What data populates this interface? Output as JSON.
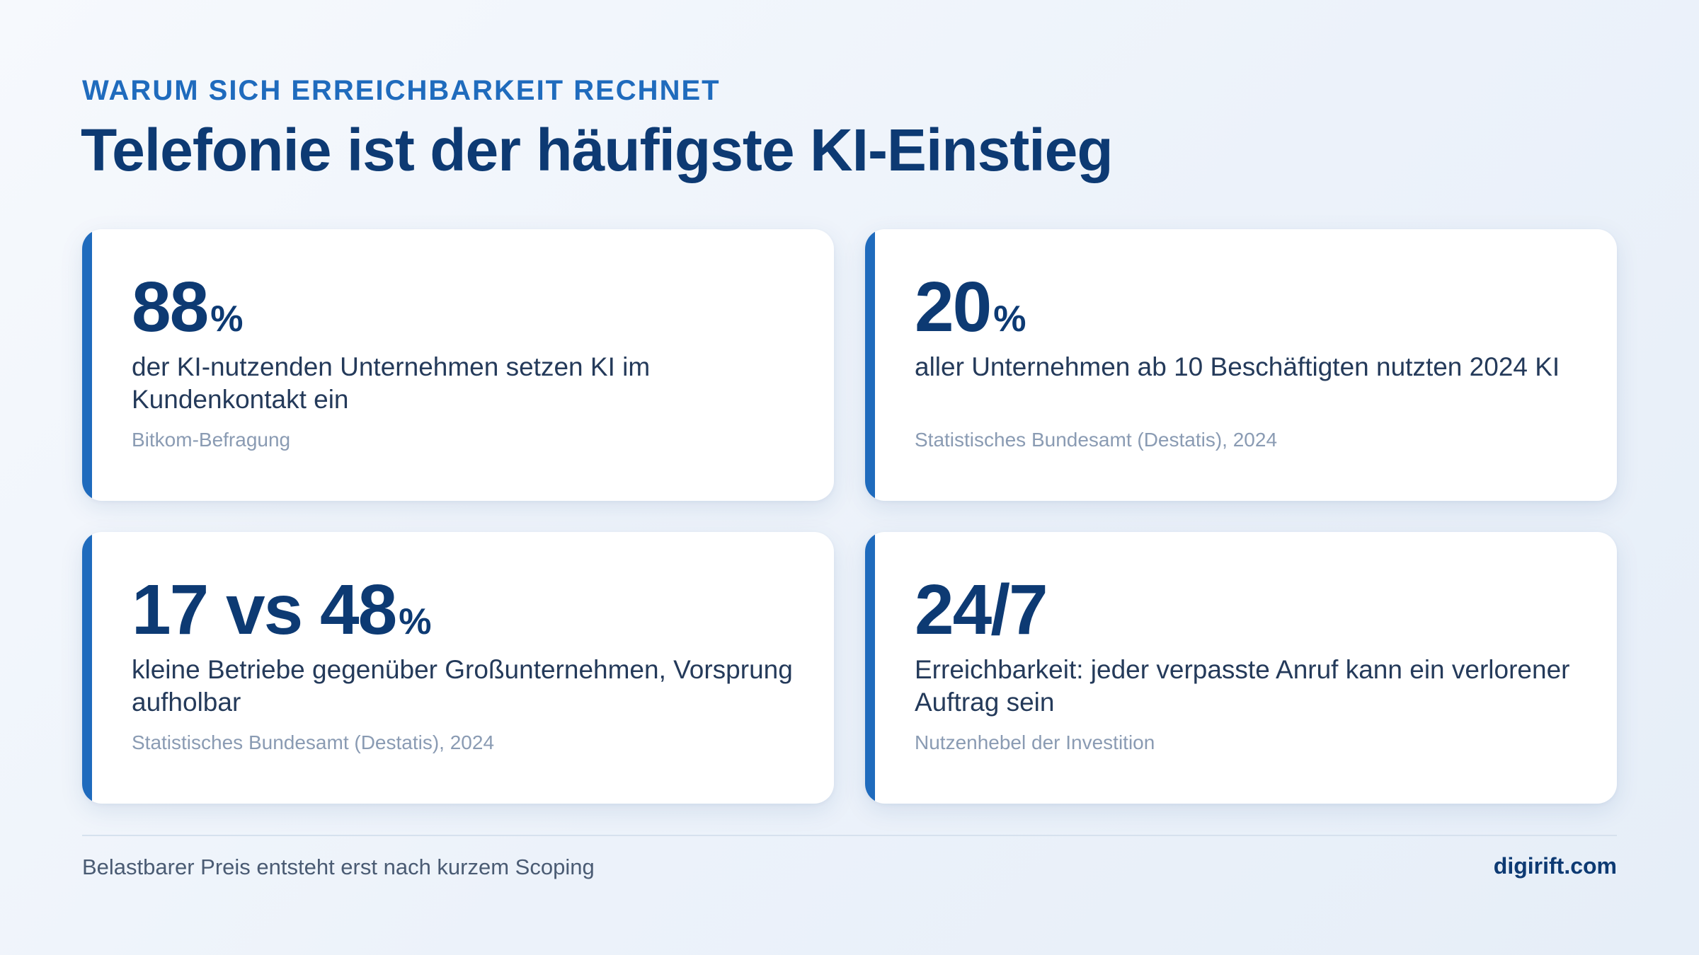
{
  "header": {
    "eyebrow": "WARUM SICH ERREICHBARKEIT RECHNET",
    "title": "Telefonie ist der häufigste KI-Einstieg"
  },
  "cards": [
    {
      "value": "88",
      "unit": "%",
      "description": "der KI-nutzenden Unternehmen setzen KI im Kundenkontakt ein",
      "source": "Bitkom-Befragung"
    },
    {
      "value": "20",
      "unit": "%",
      "description": "aller Unternehmen ab 10 Beschäftigten nutzten 2024 KI",
      "source": "Statistisches Bundesamt (Destatis), 2024"
    },
    {
      "value": "17 vs 48",
      "unit": "%",
      "description": "kleine Betriebe gegenüber Großunternehmen, Vorsprung aufholbar",
      "source": "Statistisches Bundesamt (Destatis), 2024"
    },
    {
      "value": "24/7",
      "unit": "",
      "description": "Erreichbarkeit: jeder verpasste Anruf kann ein verlorener Auftrag sein",
      "source": "Nutzenhebel der Investition"
    }
  ],
  "footer": {
    "note": "Belastbarer Preis entsteht erst nach kurzem Scoping",
    "brand": "digirift.com"
  },
  "colors": {
    "accent": "#1f6bbd",
    "heading": "#0d3a73",
    "text": "#243a5a",
    "muted": "#8a9bb3"
  }
}
